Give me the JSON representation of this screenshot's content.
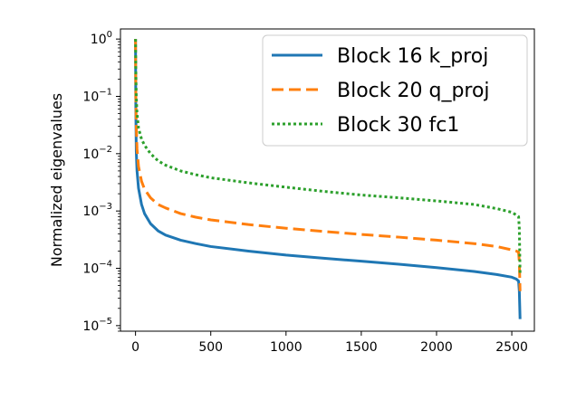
{
  "chart_data": {
    "type": "line",
    "title": "",
    "xlabel": "",
    "ylabel": "Normalized eigenvalues",
    "xlim": [
      -100,
      2650
    ],
    "ylim": [
      8e-06,
      1.5
    ],
    "yscale": "log",
    "grid": false,
    "legend_position": "top-right",
    "x_ticks": [
      0,
      500,
      1000,
      1500,
      2000,
      2500
    ],
    "x_tick_labels": [
      "0",
      "500",
      "1000",
      "1500",
      "2000",
      "2500"
    ],
    "y_ticks": [
      1e-05,
      0.0001,
      0.001,
      0.01,
      0.1,
      1
    ],
    "y_tick_labels": [
      {
        "base": "10",
        "exp": "−5"
      },
      {
        "base": "10",
        "exp": "−4"
      },
      {
        "base": "10",
        "exp": "−3"
      },
      {
        "base": "10",
        "exp": "−2"
      },
      {
        "base": "10",
        "exp": "−1"
      },
      {
        "base": "10",
        "exp": "0"
      }
    ],
    "series": [
      {
        "name": "Block 16 k_proj",
        "color": "#1f77b4",
        "style": "solid",
        "x": [
          0,
          2,
          5,
          10,
          20,
          40,
          60,
          100,
          150,
          200,
          300,
          400,
          500,
          750,
          1000,
          1250,
          1500,
          1750,
          2000,
          2250,
          2400,
          2500,
          2530,
          2545,
          2550,
          2555
        ],
        "y": [
          1.0,
          0.06,
          0.011,
          0.005,
          0.0025,
          0.0013,
          0.0009,
          0.0006,
          0.00045,
          0.00038,
          0.00031,
          0.00027,
          0.00024,
          0.0002,
          0.00017,
          0.00015,
          0.000133,
          0.000118,
          0.000103,
          8.8e-05,
          7.8e-05,
          7e-05,
          6.5e-05,
          6e-05,
          4e-05,
          1.3e-05
        ]
      },
      {
        "name": "Block 20 q_proj",
        "color": "#ff7f0e",
        "style": "dashed",
        "x": [
          0,
          2,
          5,
          10,
          20,
          40,
          60,
          100,
          150,
          200,
          300,
          400,
          500,
          750,
          1000,
          1250,
          1500,
          1750,
          2000,
          2250,
          2400,
          2500,
          2530,
          2545,
          2550,
          2555
        ],
        "y": [
          1.0,
          0.1,
          0.03,
          0.012,
          0.006,
          0.0033,
          0.0024,
          0.0017,
          0.0013,
          0.00113,
          0.0009,
          0.00078,
          0.0007,
          0.00058,
          0.0005,
          0.00044,
          0.00039,
          0.00035,
          0.00031,
          0.00027,
          0.00024,
          0.00021,
          0.0002,
          0.00019,
          0.00013,
          4e-05
        ]
      },
      {
        "name": "Block 30 fc1",
        "color": "#2ca02c",
        "style": "dotted",
        "x": [
          0,
          2,
          5,
          10,
          20,
          40,
          60,
          100,
          150,
          200,
          300,
          400,
          500,
          750,
          1000,
          1250,
          1500,
          1750,
          2000,
          2250,
          2400,
          2500,
          2530,
          2545,
          2550,
          2555
        ],
        "y": [
          1.0,
          0.3,
          0.1,
          0.05,
          0.028,
          0.018,
          0.014,
          0.01,
          0.0075,
          0.0063,
          0.005,
          0.0043,
          0.0038,
          0.0031,
          0.0026,
          0.0022,
          0.0019,
          0.0017,
          0.0015,
          0.0013,
          0.0011,
          0.00095,
          0.00085,
          0.0008,
          0.0005,
          8e-05
        ]
      }
    ]
  }
}
